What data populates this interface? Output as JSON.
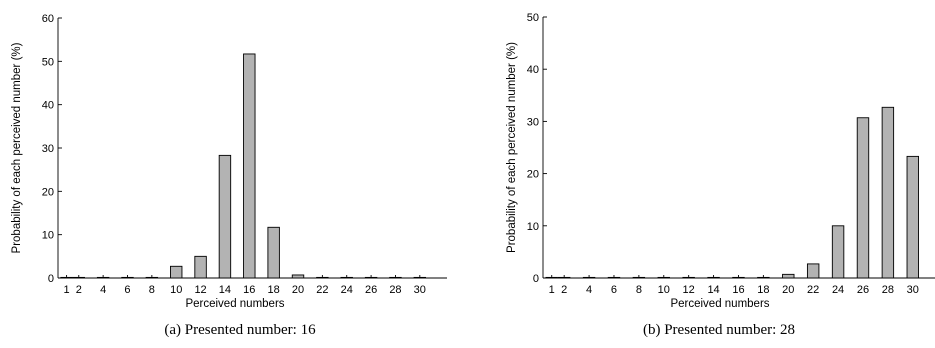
{
  "colors": {
    "bar_fill": "#b3b3b3",
    "bar_edge": "#000000",
    "background": "#ffffff"
  },
  "chart_data": [
    {
      "type": "bar",
      "caption": "(a)  Presented number: 16",
      "title": "",
      "xlabel": "Perceived numbers",
      "ylabel": "Probability of each perceived number (%)",
      "ylim": [
        0,
        60
      ],
      "yticks": [
        0,
        10,
        20,
        30,
        40,
        50,
        60
      ],
      "xticks": [
        1,
        2,
        4,
        6,
        8,
        10,
        12,
        14,
        16,
        18,
        20,
        22,
        24,
        26,
        28,
        30
      ],
      "x": [
        1,
        2,
        4,
        6,
        8,
        10,
        12,
        14,
        16,
        18,
        20,
        22,
        24,
        26,
        28,
        30
      ],
      "values": [
        0,
        0,
        0,
        0,
        0,
        2.7,
        5.0,
        28.3,
        51.7,
        11.7,
        0.7,
        0,
        0,
        0,
        0,
        0
      ],
      "grid": false,
      "legend": "none"
    },
    {
      "type": "bar",
      "caption": "(b)  Presented number: 28",
      "title": "",
      "xlabel": "Perceived numbers",
      "ylabel": "Probability of each perceived number (%)",
      "ylim": [
        0,
        50
      ],
      "yticks": [
        0,
        10,
        20,
        30,
        40,
        50
      ],
      "xticks": [
        1,
        2,
        4,
        6,
        8,
        10,
        12,
        14,
        16,
        18,
        20,
        22,
        24,
        26,
        28,
        30
      ],
      "x": [
        1,
        2,
        4,
        6,
        8,
        10,
        12,
        14,
        16,
        18,
        20,
        22,
        24,
        26,
        28,
        30
      ],
      "values": [
        0,
        0,
        0,
        0,
        0,
        0,
        0,
        0,
        0,
        0,
        0.7,
        2.7,
        10.0,
        30.7,
        32.7,
        23.3
      ],
      "grid": false,
      "legend": "none"
    }
  ]
}
